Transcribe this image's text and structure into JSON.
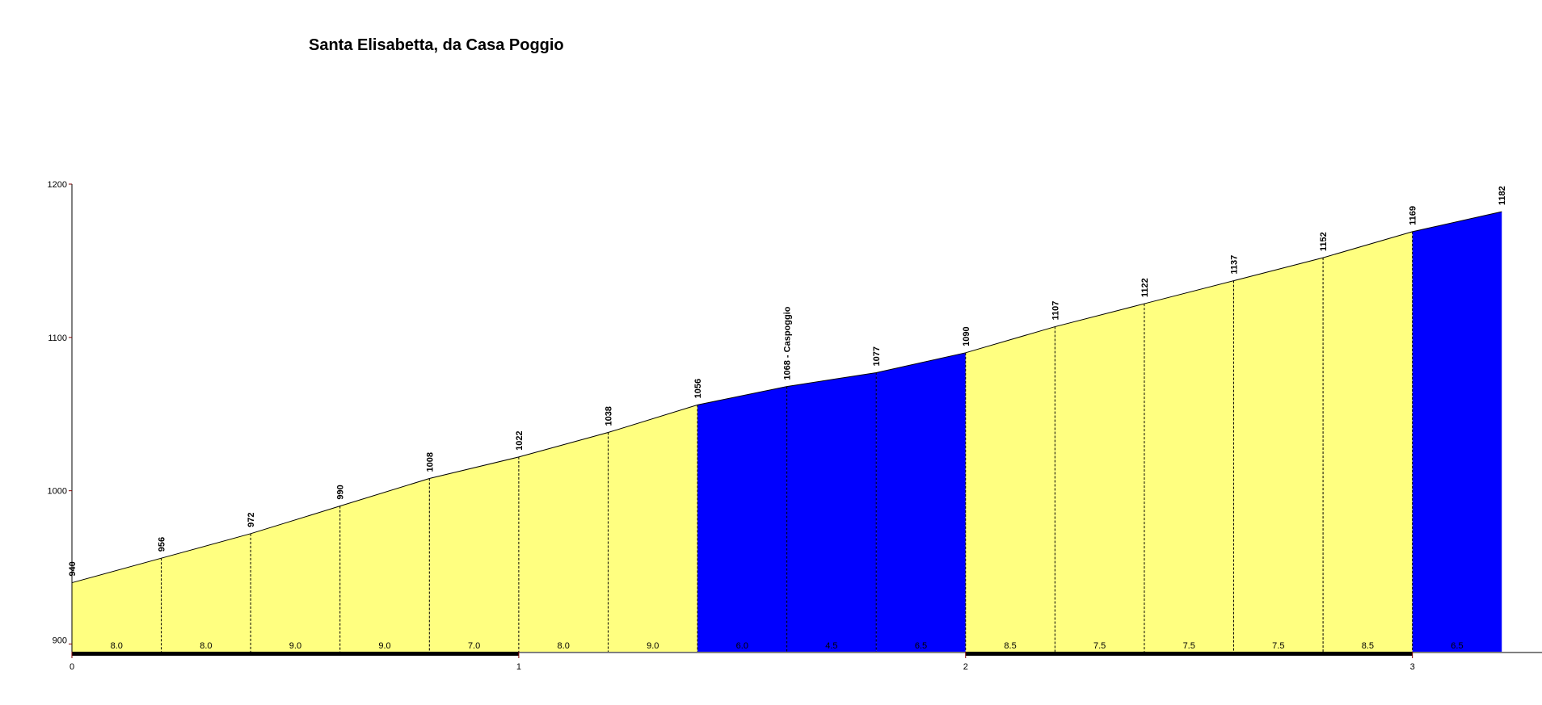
{
  "chart_data": {
    "type": "profile",
    "title": "Santa Elisabetta, da Casa Poggio",
    "x": [
      0,
      0.2,
      0.4,
      0.6,
      0.8,
      1.0,
      1.2,
      1.4,
      1.6,
      1.8,
      2.0,
      2.2,
      2.4,
      2.6,
      2.8,
      3.0,
      3.2
    ],
    "values": [
      940,
      956,
      972,
      990,
      1008,
      1022,
      1038,
      1056,
      1068,
      1077,
      1090,
      1107,
      1122,
      1137,
      1152,
      1169,
      1182
    ],
    "value_labels": [
      "940",
      "956",
      "972",
      "990",
      "1008",
      "1022",
      "1038",
      "1056",
      "1068 - Caspoggio",
      "1077",
      "1090",
      "1107",
      "1122",
      "1137",
      "1152",
      "1169",
      "1182"
    ],
    "gradient_labels": [
      "8.0",
      "8.0",
      "9.0",
      "9.0",
      "7.0",
      "8.0",
      "9.0",
      "6.0",
      "4.5",
      "6.5",
      "8.5",
      "7.5",
      "7.5",
      "7.5",
      "8.5",
      "6.5"
    ],
    "segment_colors": [
      "#ffff80",
      "#ffff80",
      "#ffff80",
      "#ffff80",
      "#ffff80",
      "#ffff80",
      "#ffff80",
      "#0000ff",
      "#0000ff",
      "#0000ff",
      "#ffff80",
      "#ffff80",
      "#ffff80",
      "#ffff80",
      "#ffff80",
      "#0000ff"
    ],
    "xlim": [
      0,
      3.29
    ],
    "xticks": [
      0,
      1,
      2,
      3
    ],
    "ylim": [
      895,
      1200
    ],
    "yticks": [
      900,
      1000,
      1100,
      1200
    ]
  }
}
